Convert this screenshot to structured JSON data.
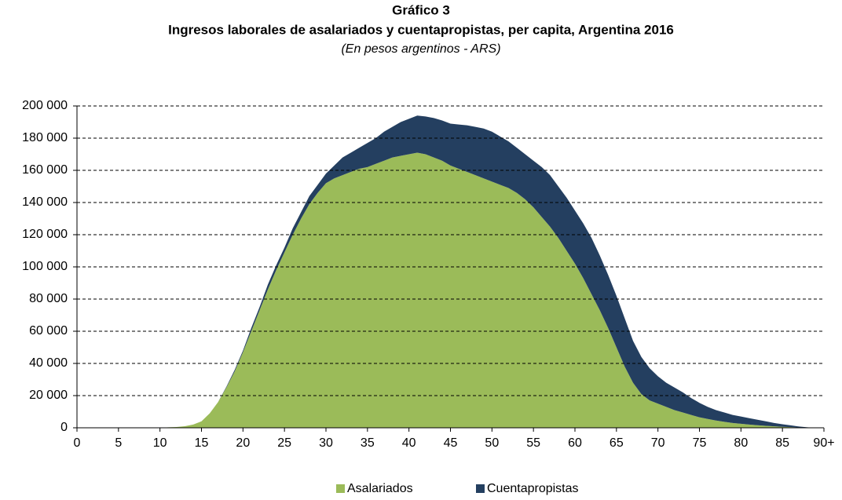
{
  "chart_data": {
    "type": "stacked_area",
    "title": "Gráfico 3",
    "subtitle": "Ingresos laborales de asalariados y cuentapropistas, per capita, Argentina 2016",
    "note": "(En pesos argentinos - ARS)",
    "x": [
      0,
      1,
      2,
      3,
      4,
      5,
      6,
      7,
      8,
      9,
      10,
      11,
      12,
      13,
      14,
      15,
      16,
      17,
      18,
      19,
      20,
      21,
      22,
      23,
      24,
      25,
      26,
      27,
      28,
      29,
      30,
      31,
      32,
      33,
      34,
      35,
      36,
      37,
      38,
      39,
      40,
      41,
      42,
      43,
      44,
      45,
      46,
      47,
      48,
      49,
      50,
      51,
      52,
      53,
      54,
      55,
      56,
      57,
      58,
      59,
      60,
      61,
      62,
      63,
      64,
      65,
      66,
      67,
      68,
      69,
      70,
      71,
      72,
      73,
      74,
      75,
      76,
      77,
      78,
      79,
      80,
      81,
      82,
      83,
      84,
      85,
      86,
      87,
      88,
      89,
      90
    ],
    "series": [
      {
        "name": "Asalariados",
        "color": "#9bbb59",
        "values": [
          0,
          0,
          0,
          0,
          0,
          0,
          0,
          0,
          0,
          0,
          0,
          300,
          500,
          1000,
          2000,
          4000,
          9000,
          16000,
          25000,
          35000,
          47000,
          60000,
          73000,
          86000,
          98000,
          109000,
          120000,
          130000,
          139000,
          146000,
          152000,
          155000,
          157000,
          159000,
          161000,
          162000,
          164000,
          166000,
          168000,
          169000,
          170000,
          171000,
          170000,
          168000,
          166000,
          163000,
          161000,
          159000,
          157000,
          155000,
          153000,
          151000,
          149000,
          146000,
          142000,
          137000,
          131000,
          125000,
          118000,
          110000,
          102000,
          93000,
          83000,
          73000,
          62000,
          50000,
          38000,
          28000,
          21000,
          17000,
          15000,
          13000,
          11000,
          9500,
          8000,
          6500,
          5500,
          4500,
          3700,
          3000,
          2500,
          2000,
          1600,
          1200,
          900,
          600,
          400,
          200,
          100,
          0,
          0
        ]
      },
      {
        "name": "Cuentapropistas",
        "color": "#243f60",
        "values": [
          0,
          0,
          0,
          0,
          0,
          0,
          0,
          0,
          0,
          0,
          0,
          0,
          0,
          0,
          0,
          0,
          0,
          0,
          500,
          1000,
          1000,
          2000,
          2000,
          3000,
          3000,
          3000,
          4000,
          4000,
          5000,
          5000,
          6000,
          8000,
          11000,
          12000,
          13000,
          15000,
          16000,
          18000,
          19000,
          21000,
          22000,
          23000,
          23500,
          24500,
          25000,
          26000,
          27500,
          29000,
          30000,
          31000,
          31000,
          30000,
          29000,
          28000,
          28000,
          29000,
          31000,
          32000,
          32000,
          33000,
          33000,
          34000,
          35000,
          34000,
          33000,
          32000,
          30000,
          26000,
          23000,
          20000,
          17000,
          15000,
          14000,
          12500,
          10500,
          9000,
          7500,
          6500,
          5800,
          5000,
          4500,
          4000,
          3400,
          2800,
          2100,
          1600,
          1100,
          600,
          200,
          0,
          0
        ]
      }
    ],
    "xlim": [
      0,
      90
    ],
    "xticks": [
      0,
      5,
      10,
      15,
      20,
      25,
      30,
      35,
      40,
      45,
      50,
      55,
      60,
      65,
      70,
      75,
      80,
      85,
      {
        "value": 90,
        "label": "90+"
      }
    ],
    "ylim": [
      0,
      200000
    ],
    "yticks": [
      0,
      {
        "value": 20000,
        "label": "20 000"
      },
      {
        "value": 40000,
        "label": "40 000"
      },
      {
        "value": 60000,
        "label": "60 000"
      },
      {
        "value": 80000,
        "label": "80 000"
      },
      {
        "value": 100000,
        "label": "100 000"
      },
      {
        "value": 120000,
        "label": "120 000"
      },
      {
        "value": 140000,
        "label": "140 000"
      },
      {
        "value": 160000,
        "label": "160 000"
      },
      {
        "value": 180000,
        "label": "180 000"
      },
      {
        "value": 200000,
        "label": "200 000"
      }
    ],
    "grid": true,
    "legend": "bottom"
  }
}
